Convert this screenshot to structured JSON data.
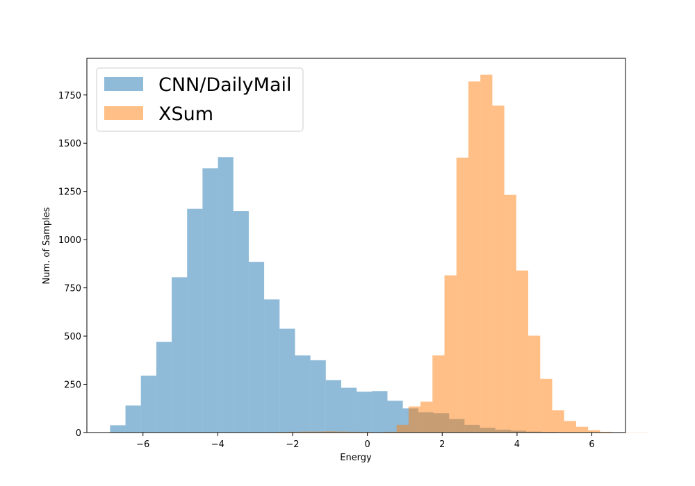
{
  "chart_data": {
    "type": "bar",
    "title": "",
    "xlabel": "Energy",
    "ylabel": "Num. of Samples",
    "xlim": [
      -7.5,
      6.9
    ],
    "ylim": [
      0,
      1940
    ],
    "xticks": [
      -6,
      -4,
      -2,
      0,
      2,
      4,
      6
    ],
    "xtick_labels": [
      "−6",
      "−4",
      "−2",
      "0",
      "2",
      "4",
      "6"
    ],
    "yticks": [
      0,
      250,
      500,
      750,
      1000,
      1250,
      1500,
      1750
    ],
    "ytick_labels": [
      "0",
      "250",
      "500",
      "750",
      "1000",
      "1250",
      "1500",
      "1750"
    ],
    "legend": {
      "position": "top-left"
    },
    "grid": false,
    "series": [
      {
        "name": "CNN/DailyMail",
        "color": "#1f77b4",
        "opacity": 0.5,
        "bin_start": -6.88,
        "bin_width": 0.412,
        "values": [
          38,
          140,
          295,
          470,
          805,
          1160,
          1370,
          1428,
          1148,
          885,
          690,
          538,
          400,
          375,
          272,
          232,
          212,
          215,
          165,
          125,
          105,
          100,
          70,
          40,
          25,
          15,
          10,
          5,
          3,
          2,
          1,
          1,
          1
        ]
      },
      {
        "name": "XSum",
        "color": "#ff7f0e",
        "opacity": 0.5,
        "bin_start": -2.74,
        "bin_width": 0.32,
        "values": [
          2,
          3,
          4,
          5,
          5,
          6,
          5,
          4,
          3,
          2,
          4,
          40,
          135,
          160,
          400,
          815,
          1425,
          1820,
          1855,
          1695,
          1232,
          840,
          502,
          278,
          115,
          60,
          30,
          12,
          4,
          2,
          1,
          1
        ]
      }
    ]
  }
}
